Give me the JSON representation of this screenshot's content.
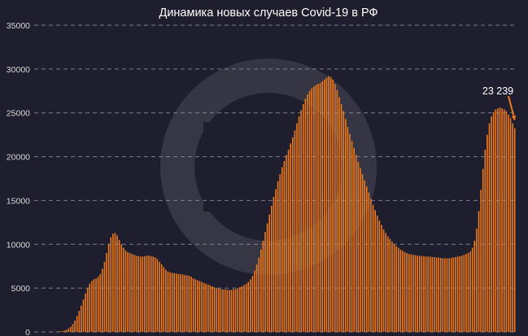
{
  "chart_data": {
    "type": "bar",
    "title": "Динамика новых случаев Covid-19 в РФ",
    "xlabel": "",
    "ylabel": "",
    "ylim": [
      0,
      35000
    ],
    "yticks": [
      "0",
      "5000",
      "10000",
      "15000",
      "20000",
      "25000",
      "30000",
      "35000"
    ],
    "grid": true,
    "bar_color": "#f07a1a",
    "annotation": {
      "text": "23 239",
      "arrow_color": "#f07a1a"
    },
    "series": [
      {
        "values": [
          0,
          0,
          0,
          0,
          0,
          0,
          0,
          0,
          10,
          20,
          40,
          60,
          100,
          150,
          250,
          400,
          600,
          900,
          1300,
          1800,
          2400,
          3000,
          3700,
          4400,
          5000,
          5500,
          5800,
          6000,
          6100,
          6300,
          6600,
          7200,
          8000,
          9000,
          10000,
          10800,
          11200,
          11300,
          11000,
          10500,
          10000,
          9600,
          9300,
          9100,
          9000,
          8900,
          8800,
          8700,
          8650,
          8600,
          8600,
          8650,
          8700,
          8700,
          8650,
          8600,
          8500,
          8300,
          8000,
          7700,
          7400,
          7100,
          6900,
          6800,
          6750,
          6700,
          6650,
          6600,
          6600,
          6550,
          6500,
          6450,
          6400,
          6300,
          6100,
          6000,
          5900,
          5800,
          5700,
          5600,
          5500,
          5400,
          5300,
          5200,
          5100,
          5000,
          4950,
          4900,
          4850,
          4850,
          4800,
          4800,
          4800,
          4850,
          4900,
          5000,
          5100,
          5200,
          5350,
          5500,
          5700,
          6000,
          6400,
          7000,
          7700,
          8500,
          9400,
          10400,
          11400,
          12400,
          13400,
          14400,
          15400,
          16300,
          17200,
          18000,
          18800,
          19500,
          20200,
          20800,
          21500,
          22200,
          23000,
          23800,
          24600,
          25300,
          26000,
          26600,
          27100,
          27500,
          27800,
          28000,
          28200,
          28300,
          28400,
          28600,
          28800,
          29000,
          29200,
          29100,
          28800,
          28300,
          27600,
          26800,
          26000,
          25200,
          24300,
          23400,
          22600,
          21800,
          21000,
          20200,
          19400,
          18700,
          18000,
          17300,
          16600,
          15900,
          15200,
          14500,
          13900,
          13300,
          12700,
          12200,
          11700,
          11300,
          10900,
          10600,
          10300,
          10000,
          9800,
          9600,
          9400,
          9250,
          9100,
          9000,
          8900,
          8850,
          8800,
          8750,
          8700,
          8700,
          8650,
          8650,
          8600,
          8600,
          8600,
          8550,
          8550,
          8500,
          8500,
          8450,
          8400,
          8400,
          8400,
          8400,
          8450,
          8500,
          8550,
          8600,
          8650,
          8700,
          8800,
          8900,
          9000,
          9200,
          9600,
          10400,
          11800,
          13800,
          16200,
          18600,
          20800,
          22500,
          23800,
          24600,
          25100,
          25400,
          25500,
          25600,
          25500,
          25400,
          25200,
          24800,
          24400,
          23800,
          23239
        ]
      }
    ]
  }
}
